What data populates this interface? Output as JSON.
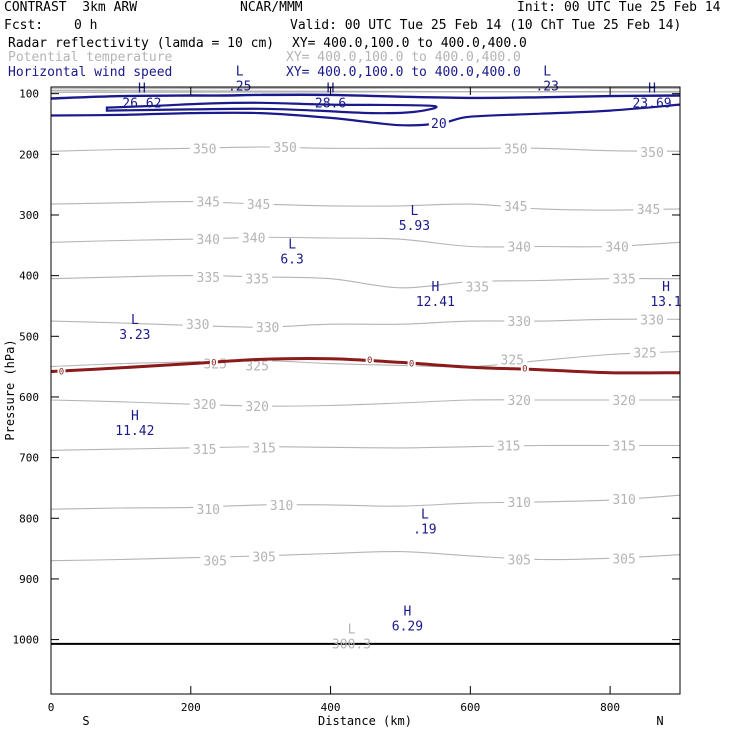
{
  "header": {
    "title": "CONTRAST  3km ARW",
    "center": "NCAR/MMM",
    "init": "Init: 00 UTC Tue 25 Feb 14",
    "fcst_label": "Fcst:",
    "fcst_value": "0 h",
    "valid": "Valid: 00 UTC Tue 25 Feb 14 (10 ChT Tue 25 Feb 14)",
    "fields": [
      {
        "name": "Radar reflectivity (lamda = 10 cm)",
        "xy": "XY= 400.0,100.0 to 400.0,400.0",
        "color": "#000000"
      },
      {
        "name": "Potential temperature",
        "xy": "XY= 400.0,100.0 to 400.0,400.0",
        "color": "#b4b4b4"
      },
      {
        "name": "Horizontal wind speed",
        "xy": "XY= 400.0,100.0 to 400.0,400.0",
        "color": "#1a1a8c"
      }
    ]
  },
  "chart_data": {
    "type": "cross-section contour",
    "xlabel": "Distance (km)",
    "ylabel": "Pressure (hPa)",
    "xlim": [
      0,
      900
    ],
    "ylim": [
      1045,
      50
    ],
    "x_ticks": [
      0,
      200,
      400,
      600,
      800
    ],
    "y_ticks": [
      100,
      200,
      300,
      400,
      500,
      600,
      700,
      800,
      900,
      1000
    ],
    "endpoints": {
      "left": "S",
      "right": "N"
    },
    "colors": {
      "theta": "#b4b4b4",
      "wind": "#1a1a8c",
      "reflectivity": "#8b1a1a",
      "terrain": "#000000"
    },
    "theta_contours": [
      {
        "value": 305,
        "points": [
          [
            0,
            870
          ],
          [
            100,
            868
          ],
          [
            200,
            865
          ],
          [
            300,
            862
          ],
          [
            400,
            858
          ],
          [
            500,
            855
          ],
          [
            600,
            862
          ],
          [
            700,
            868
          ],
          [
            800,
            866
          ],
          [
            900,
            860
          ]
        ],
        "labels": [
          [
            235,
            870
          ],
          [
            305,
            863
          ],
          [
            670,
            868
          ],
          [
            820,
            866
          ]
        ]
      },
      {
        "value": 310,
        "points": [
          [
            0,
            785
          ],
          [
            100,
            783
          ],
          [
            200,
            782
          ],
          [
            300,
            778
          ],
          [
            400,
            778
          ],
          [
            500,
            780
          ],
          [
            600,
            775
          ],
          [
            700,
            773
          ],
          [
            800,
            770
          ],
          [
            900,
            762
          ]
        ],
        "labels": [
          [
            225,
            785
          ],
          [
            330,
            778
          ],
          [
            670,
            773
          ],
          [
            820,
            768
          ]
        ]
      },
      {
        "value": 315,
        "points": [
          [
            0,
            688
          ],
          [
            100,
            686
          ],
          [
            200,
            684
          ],
          [
            300,
            682
          ],
          [
            400,
            683
          ],
          [
            500,
            684
          ],
          [
            600,
            682
          ],
          [
            700,
            680
          ],
          [
            800,
            680
          ],
          [
            900,
            680
          ]
        ],
        "labels": [
          [
            220,
            686
          ],
          [
            305,
            683
          ],
          [
            655,
            680
          ],
          [
            820,
            680
          ]
        ]
      },
      {
        "value": 320,
        "points": [
          [
            0,
            605
          ],
          [
            100,
            608
          ],
          [
            200,
            612
          ],
          [
            300,
            615
          ],
          [
            400,
            614
          ],
          [
            500,
            610
          ],
          [
            600,
            605
          ],
          [
            700,
            605
          ],
          [
            800,
            605
          ],
          [
            900,
            605
          ]
        ],
        "labels": [
          [
            220,
            612
          ],
          [
            295,
            615
          ],
          [
            670,
            605
          ],
          [
            820,
            605
          ]
        ]
      },
      {
        "value": 325,
        "points": [
          [
            0,
            550
          ],
          [
            100,
            545
          ],
          [
            200,
            542
          ],
          [
            300,
            540
          ],
          [
            400,
            545
          ],
          [
            500,
            548
          ],
          [
            600,
            550
          ],
          [
            700,
            540
          ],
          [
            800,
            530
          ],
          [
            900,
            525
          ]
        ],
        "labels": [
          [
            235,
            545
          ],
          [
            295,
            548
          ],
          [
            660,
            538
          ],
          [
            850,
            527
          ]
        ]
      },
      {
        "value": 330,
        "points": [
          [
            0,
            475
          ],
          [
            100,
            478
          ],
          [
            200,
            482
          ],
          [
            300,
            485
          ],
          [
            400,
            480
          ],
          [
            500,
            480
          ],
          [
            600,
            475
          ],
          [
            700,
            475
          ],
          [
            800,
            472
          ],
          [
            900,
            472
          ]
        ],
        "labels": [
          [
            210,
            480
          ],
          [
            310,
            485
          ],
          [
            670,
            475
          ],
          [
            860,
            472
          ]
        ]
      },
      {
        "value": 335,
        "points": [
          [
            0,
            405
          ],
          [
            100,
            402
          ],
          [
            200,
            400
          ],
          [
            300,
            402
          ],
          [
            400,
            405
          ],
          [
            500,
            420
          ],
          [
            600,
            410
          ],
          [
            700,
            408
          ],
          [
            800,
            405
          ],
          [
            900,
            405
          ]
        ],
        "labels": [
          [
            225,
            402
          ],
          [
            295,
            405
          ],
          [
            610,
            418
          ],
          [
            820,
            405
          ]
        ]
      },
      {
        "value": 340,
        "points": [
          [
            0,
            345
          ],
          [
            100,
            342
          ],
          [
            200,
            340
          ],
          [
            300,
            337
          ],
          [
            400,
            338
          ],
          [
            500,
            340
          ],
          [
            600,
            352
          ],
          [
            700,
            352
          ],
          [
            800,
            352
          ],
          [
            900,
            345
          ]
        ],
        "labels": [
          [
            225,
            340
          ],
          [
            290,
            337
          ],
          [
            670,
            352
          ],
          [
            810,
            352
          ]
        ]
      },
      {
        "value": 345,
        "points": [
          [
            0,
            282
          ],
          [
            100,
            280
          ],
          [
            200,
            278
          ],
          [
            300,
            282
          ],
          [
            400,
            285
          ],
          [
            500,
            285
          ],
          [
            600,
            282
          ],
          [
            700,
            290
          ],
          [
            800,
            292
          ],
          [
            900,
            290
          ]
        ],
        "labels": [
          [
            225,
            278
          ],
          [
            297,
            282
          ],
          [
            665,
            285
          ],
          [
            855,
            290
          ]
        ]
      },
      {
        "value": 350,
        "points": [
          [
            0,
            195
          ],
          [
            100,
            192
          ],
          [
            200,
            190
          ],
          [
            300,
            188
          ],
          [
            400,
            190
          ],
          [
            500,
            190
          ],
          [
            600,
            190
          ],
          [
            700,
            190
          ],
          [
            800,
            194
          ],
          [
            900,
            195
          ]
        ],
        "labels": [
          [
            220,
            190
          ],
          [
            335,
            188
          ],
          [
            665,
            190
          ],
          [
            860,
            196
          ]
        ]
      }
    ],
    "theta_upper_band": {
      "from": 50,
      "to": 100
    },
    "wind_contours": [
      {
        "value": 20,
        "points": [
          [
            0,
            136
          ],
          [
            100,
            135
          ],
          [
            200,
            132
          ],
          [
            300,
            132
          ],
          [
            400,
            140
          ],
          [
            500,
            152
          ],
          [
            560,
            148
          ],
          [
            600,
            138
          ],
          [
            700,
            133
          ],
          [
            800,
            128
          ],
          [
            900,
            118
          ]
        ],
        "labels": [
          [
            555,
            148
          ]
        ]
      }
    ],
    "wind_jet": [
      [
        0,
        108
      ],
      [
        100,
        104
      ],
      [
        200,
        103
      ],
      [
        250,
        103
      ],
      [
        300,
        102
      ],
      [
        400,
        102
      ],
      [
        500,
        105
      ],
      [
        600,
        107
      ],
      [
        700,
        106
      ],
      [
        800,
        104
      ],
      [
        900,
        103
      ]
    ],
    "wind_inner": [
      [
        80,
        123
      ],
      [
        150,
        120
      ],
      [
        230,
        116
      ],
      [
        300,
        115
      ],
      [
        400,
        118
      ],
      [
        545,
        120
      ],
      [
        520,
        130
      ],
      [
        460,
        132
      ],
      [
        380,
        128
      ],
      [
        300,
        125
      ],
      [
        200,
        126
      ],
      [
        80,
        128
      ]
    ],
    "reflectivity_contours": [
      {
        "value": 0,
        "points": [
          [
            0,
            558
          ],
          [
            100,
            552
          ],
          [
            200,
            545
          ],
          [
            300,
            538
          ],
          [
            400,
            537
          ],
          [
            500,
            543
          ],
          [
            600,
            551
          ],
          [
            700,
            555
          ],
          [
            800,
            560
          ],
          [
            900,
            560
          ]
        ],
        "labels": [
          [
            15,
            558
          ],
          [
            233,
            543
          ],
          [
            456,
            539
          ],
          [
            516,
            545
          ],
          [
            678,
            553
          ]
        ]
      }
    ],
    "terrain_pressure": 1007,
    "extrema": [
      {
        "type": "L",
        "value": ".25",
        "x": 270,
        "p": 70,
        "color": "#1a1a8c"
      },
      {
        "type": "L",
        "value": ".23",
        "x": 710,
        "p": 70,
        "color": "#1a1a8c"
      },
      {
        "type": "H",
        "value": "26.62",
        "x": 130,
        "p": 98,
        "color": "#1a1a8c"
      },
      {
        "type": "H",
        "value": "28.6",
        "x": 400,
        "p": 98,
        "color": "#1a1a8c"
      },
      {
        "type": "H",
        "value": "23.69",
        "x": 860,
        "p": 98,
        "color": "#1a1a8c"
      },
      {
        "type": "L",
        "value": "5.93",
        "x": 520,
        "p": 300,
        "color": "#1a1a8c"
      },
      {
        "type": "L",
        "value": "6.3",
        "x": 345,
        "p": 355,
        "color": "#1a1a8c"
      },
      {
        "type": "H",
        "value": "12.41",
        "x": 550,
        "p": 425,
        "color": "#1a1a8c"
      },
      {
        "type": "H",
        "value": "13.1",
        "x": 880,
        "p": 425,
        "color": "#1a1a8c"
      },
      {
        "type": "L",
        "value": "3.23",
        "x": 120,
        "p": 480,
        "color": "#1a1a8c"
      },
      {
        "type": "H",
        "value": "11.42",
        "x": 120,
        "p": 638,
        "color": "#1a1a8c"
      },
      {
        "type": "L",
        "value": ".19",
        "x": 535,
        "p": 800,
        "color": "#1a1a8c"
      },
      {
        "type": "H",
        "value": "6.29",
        "x": 510,
        "p": 960,
        "color": "#1a1a8c"
      },
      {
        "type": "L",
        "value": "300.3",
        "x": 430,
        "p": 990,
        "color": "#b4b4b4"
      }
    ]
  }
}
